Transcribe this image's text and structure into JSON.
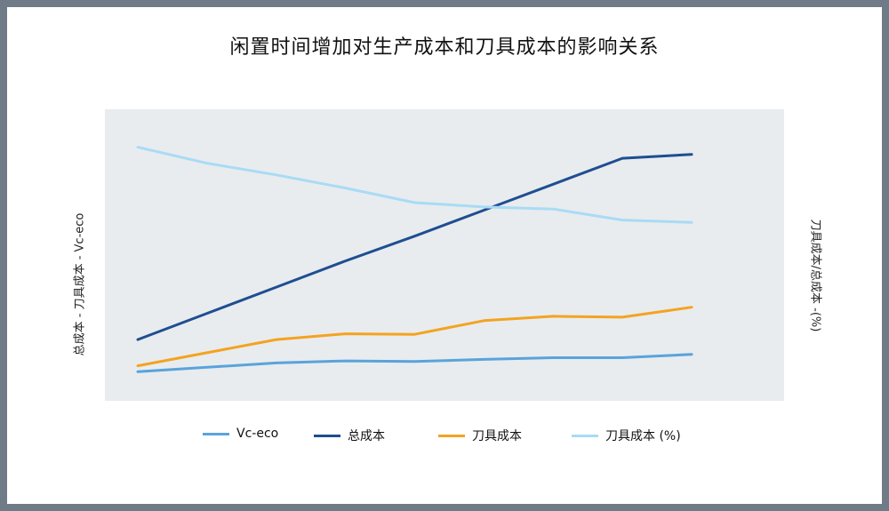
{
  "chart_data": {
    "type": "line",
    "title": "闲置时间增加对生产成本和刀具成本的影响关系",
    "ylabel_left": "总成本 - 刀具成本 - Vc-eco",
    "ylabel_right": "刀具成本/总成本 -(%)",
    "xlabel": "",
    "x": [
      1,
      2,
      3,
      4,
      5,
      6,
      7,
      8,
      9
    ],
    "ylim": [
      0,
      100
    ],
    "grid": false,
    "legend_position": "bottom",
    "series": [
      {
        "name": "Vc-eco",
        "color": "#5aa3db",
        "values": [
          10,
          11.5,
          13,
          13.7,
          13.5,
          14.2,
          14.8,
          14.8,
          15.9
        ]
      },
      {
        "name": "总成本",
        "color": "#1f4e91",
        "values": [
          21,
          30,
          39,
          48,
          56.5,
          65.4,
          74.3,
          83.2,
          84.5
        ]
      },
      {
        "name": "刀具成本",
        "color": "#f4a320",
        "values": [
          12,
          16.5,
          21,
          23,
          22.8,
          27.5,
          29,
          28.7,
          32.1
        ]
      },
      {
        "name": "刀具成本 (%)",
        "color": "#a9dbf5",
        "values": [
          87,
          81.5,
          77.5,
          73,
          68,
          66.5,
          65.8,
          62,
          61.2
        ]
      }
    ]
  }
}
